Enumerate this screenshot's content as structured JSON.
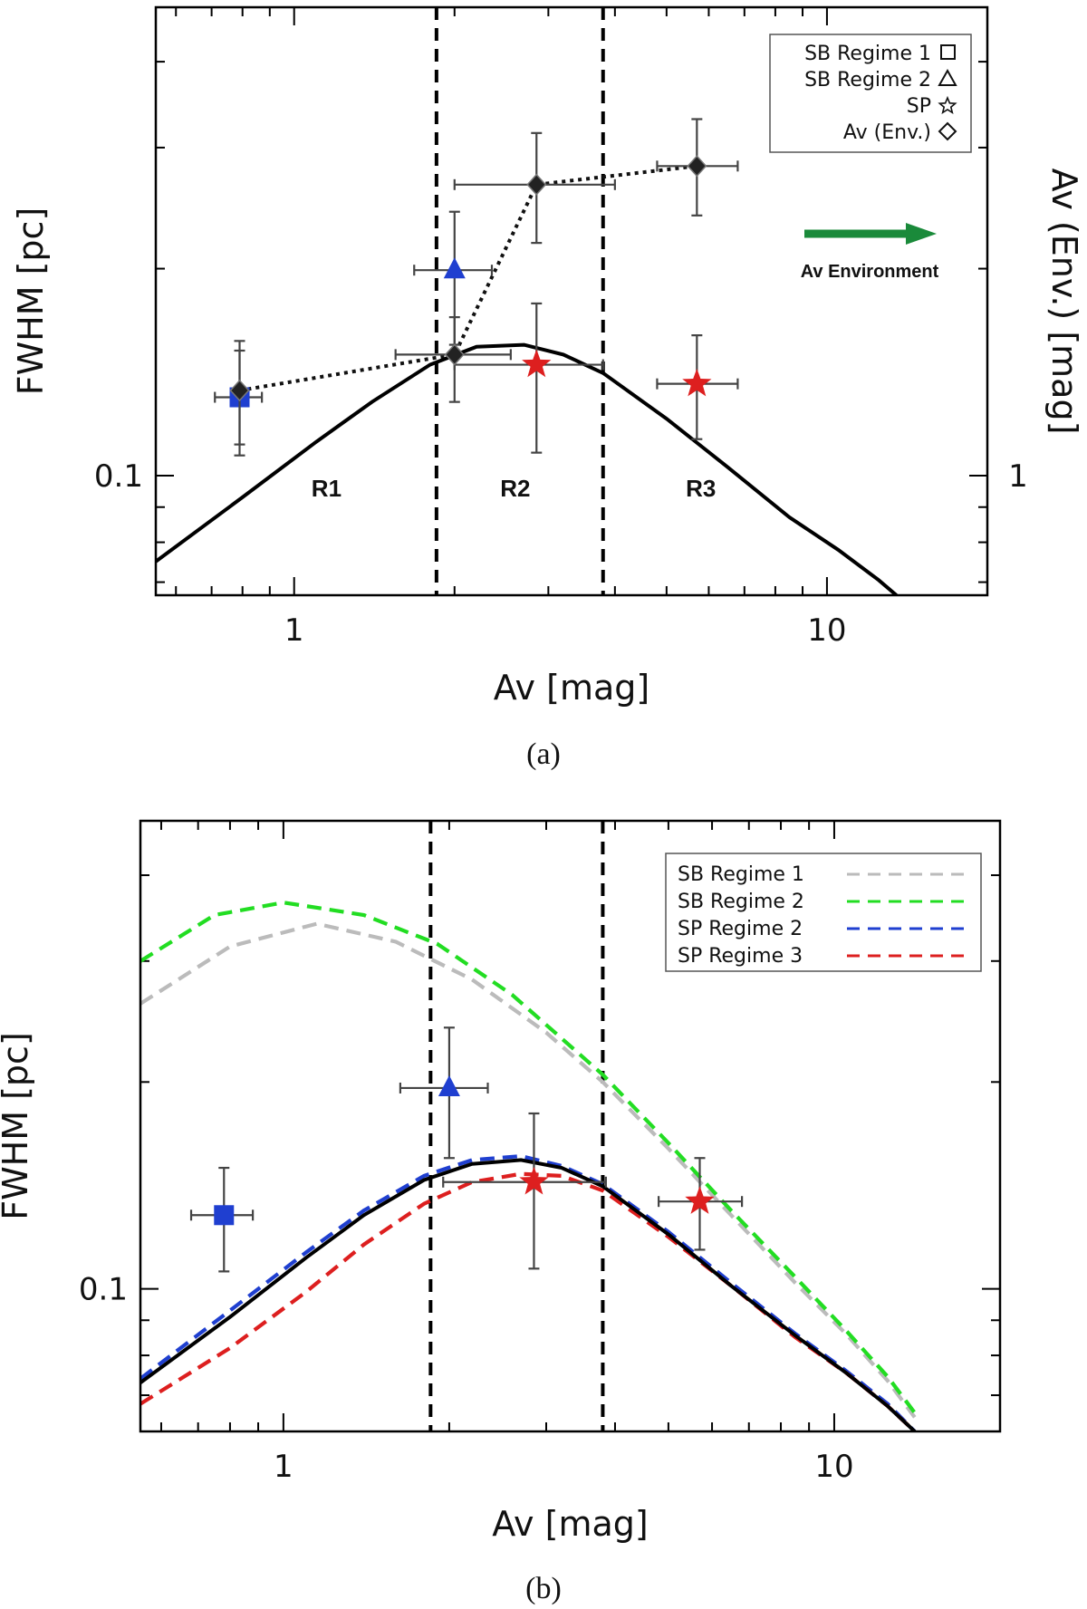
{
  "chart_data": [
    {
      "panel": "(a)",
      "type": "scatter",
      "caption": "(a)",
      "xlabel": "Av [mag]",
      "ylabel": "FWHM [pc]",
      "ylabel_right": "Av (Env.) [mag]",
      "xscale": "log",
      "yscale": "log",
      "xlim": [
        0.55,
        20
      ],
      "ylim": [
        0.067,
        0.48
      ],
      "x_tick_labels": [
        {
          "value": 1,
          "label": "1"
        },
        {
          "value": 10,
          "label": "10"
        }
      ],
      "y_tick_labels": [
        {
          "value": 0.1,
          "label": "0.1"
        }
      ],
      "y_right_tick_labels": [
        {
          "value": 0.1,
          "label": "1"
        }
      ],
      "vlines": [
        1.85,
        3.8
      ],
      "regions": [
        {
          "label": "R1",
          "x": 1.15
        },
        {
          "label": "R2",
          "x": 2.6
        },
        {
          "label": "R3",
          "x": 5.8
        }
      ],
      "legend": {
        "placement": "top-right",
        "entries": [
          {
            "label": "SB Regime 1",
            "symbol": "square"
          },
          {
            "label": "SB Regime 2",
            "symbol": "triangle"
          },
          {
            "label": "SP",
            "symbol": "star"
          },
          {
            "label": "Av (Env.)",
            "symbol": "diamond"
          }
        ]
      },
      "annotation": {
        "text": "Av Environment",
        "arrow_color": "#1a8a3a"
      },
      "series": [
        {
          "name": "SB Regime 1",
          "marker": "square",
          "color": "#1f3fd0",
          "points": [
            {
              "x": 0.79,
              "y": 0.13,
              "xerr": [
                0.71,
                0.87
              ],
              "yerr": [
                0.107,
                0.152
              ]
            }
          ]
        },
        {
          "name": "SB Regime 2",
          "marker": "triangle",
          "color": "#1f3fd0",
          "points": [
            {
              "x": 2.0,
              "y": 0.199,
              "xerr": [
                1.68,
                2.35
              ],
              "yerr": [
                0.155,
                0.242
              ]
            }
          ]
        },
        {
          "name": "SP",
          "marker": "star",
          "color": "#dd1f1f",
          "points": [
            {
              "x": 2.85,
              "y": 0.145,
              "xerr": [
                2.0,
                3.8
              ],
              "yerr": [
                0.108,
                0.178
              ]
            },
            {
              "x": 5.7,
              "y": 0.136,
              "xerr": [
                4.8,
                6.8
              ],
              "yerr": [
                0.113,
                0.16
              ]
            }
          ]
        },
        {
          "name": "Av (Env.)",
          "marker": "diamond",
          "color": "#222222",
          "line": "dotted",
          "points": [
            {
              "x": 0.79,
              "y": 0.133,
              "yerr": [
                0.111,
                0.157
              ]
            },
            {
              "x": 2.0,
              "y": 0.15,
              "xerr": [
                1.55,
                2.55
              ],
              "yerr": [
                0.128,
                0.17
              ]
            },
            {
              "x": 2.85,
              "y": 0.265,
              "xerr": [
                2.0,
                4.0
              ],
              "yerr": [
                0.218,
                0.315
              ]
            },
            {
              "x": 5.7,
              "y": 0.282,
              "xerr": [
                4.8,
                6.8
              ],
              "yerr": [
                0.239,
                0.33
              ]
            }
          ]
        },
        {
          "name": "",
          "marker": "none",
          "line": "solid",
          "color": "#000000",
          "curve": [
            [
              0.55,
              0.075
            ],
            [
              0.8,
              0.093
            ],
            [
              1.1,
              0.112
            ],
            [
              1.4,
              0.128
            ],
            [
              1.8,
              0.145
            ],
            [
              2.2,
              0.154
            ],
            [
              2.7,
              0.155
            ],
            [
              3.2,
              0.15
            ],
            [
              3.8,
              0.141
            ],
            [
              5.0,
              0.121
            ],
            [
              6.5,
              0.103
            ],
            [
              8.5,
              0.087
            ],
            [
              10.5,
              0.078
            ],
            [
              12.5,
              0.0705
            ],
            [
              13.5,
              0.067
            ]
          ]
        }
      ]
    },
    {
      "panel": "(b)",
      "type": "scatter",
      "caption": "(b)",
      "xlabel": "Av [mag]",
      "ylabel": "FWHM [pc]",
      "xscale": "log",
      "yscale": "log",
      "xlim": [
        0.55,
        20
      ],
      "ylim": [
        0.062,
        0.48
      ],
      "x_tick_labels": [
        {
          "value": 1,
          "label": "1"
        },
        {
          "value": 10,
          "label": "10"
        }
      ],
      "y_tick_labels": [
        {
          "value": 0.1,
          "label": "0.1"
        }
      ],
      "vlines": [
        1.85,
        3.8
      ],
      "legend": {
        "placement": "top-right",
        "entries": [
          {
            "label": "SB Regime 1",
            "color": "#bbbbbb"
          },
          {
            "label": "SB Regime 2",
            "color": "#22dd22"
          },
          {
            "label": "SP Regime 2",
            "color": "#1f3fd0"
          },
          {
            "label": "SP Regime 3",
            "color": "#dd1f1f"
          }
        ]
      },
      "series": [
        {
          "name": "SB Regime 1",
          "line": "dashed",
          "color": "#bbbbbb",
          "curve": [
            [
              0.55,
              0.26
            ],
            [
              0.8,
              0.315
            ],
            [
              1.15,
              0.34
            ],
            [
              1.6,
              0.32
            ],
            [
              2.2,
              0.282
            ],
            [
              3.0,
              0.236
            ],
            [
              3.8,
              0.2
            ],
            [
              5.0,
              0.16
            ],
            [
              6.5,
              0.128
            ],
            [
              8.5,
              0.102
            ],
            [
              10.5,
              0.086
            ],
            [
              12.5,
              0.0735
            ],
            [
              14.0,
              0.065
            ]
          ]
        },
        {
          "name": "SB Regime 2",
          "line": "dashed",
          "color": "#22dd22",
          "curve": [
            [
              0.55,
              0.3
            ],
            [
              0.75,
              0.35
            ],
            [
              1.0,
              0.365
            ],
            [
              1.4,
              0.35
            ],
            [
              1.9,
              0.318
            ],
            [
              2.6,
              0.268
            ],
            [
              3.8,
              0.205
            ],
            [
              5.0,
              0.163
            ],
            [
              6.5,
              0.13
            ],
            [
              8.5,
              0.104
            ],
            [
              10.5,
              0.087
            ],
            [
              12.5,
              0.0745
            ],
            [
              14.0,
              0.066
            ]
          ]
        },
        {
          "name": "SP Regime 2",
          "line": "dashed",
          "color": "#1f3fd0",
          "curve": [
            [
              0.55,
              0.074
            ],
            [
              0.8,
              0.093
            ],
            [
              1.1,
              0.113
            ],
            [
              1.4,
              0.13
            ],
            [
              1.8,
              0.146
            ],
            [
              2.2,
              0.154
            ],
            [
              2.7,
              0.156
            ],
            [
              3.2,
              0.151
            ],
            [
              3.8,
              0.142
            ],
            [
              5.0,
              0.121
            ],
            [
              6.5,
              0.102
            ],
            [
              8.5,
              0.086
            ],
            [
              10.5,
              0.076
            ],
            [
              12.5,
              0.068
            ],
            [
              14.0,
              0.062
            ]
          ]
        },
        {
          "name": "SP Regime 3",
          "line": "dashed",
          "color": "#dd1f1f",
          "curve": [
            [
              0.55,
              0.068
            ],
            [
              0.8,
              0.082
            ],
            [
              1.1,
              0.099
            ],
            [
              1.4,
              0.116
            ],
            [
              1.8,
              0.133
            ],
            [
              2.2,
              0.143
            ],
            [
              2.7,
              0.147
            ],
            [
              3.2,
              0.146
            ],
            [
              3.8,
              0.139
            ],
            [
              5.0,
              0.119
            ],
            [
              6.5,
              0.101
            ],
            [
              8.5,
              0.085
            ],
            [
              10.5,
              0.0755
            ],
            [
              12.5,
              0.0675
            ],
            [
              14.0,
              0.062
            ]
          ]
        },
        {
          "name": "",
          "line": "solid",
          "color": "#000000",
          "curve": [
            [
              0.55,
              0.073
            ],
            [
              0.8,
              0.091
            ],
            [
              1.1,
              0.111
            ],
            [
              1.4,
              0.128
            ],
            [
              1.8,
              0.144
            ],
            [
              2.2,
              0.152
            ],
            [
              2.7,
              0.154
            ],
            [
              3.2,
              0.15
            ],
            [
              3.8,
              0.141
            ],
            [
              5.0,
              0.12
            ],
            [
              6.5,
              0.101
            ],
            [
              8.5,
              0.0855
            ],
            [
              10.5,
              0.0755
            ],
            [
              12.5,
              0.0675
            ],
            [
              14.0,
              0.062
            ]
          ]
        },
        {
          "name": "",
          "marker": "square",
          "color": "#1f3fd0",
          "points": [
            {
              "x": 0.78,
              "y": 0.128,
              "xerr": [
                0.68,
                0.88
              ],
              "yerr": [
                0.106,
                0.15
              ]
            }
          ]
        },
        {
          "name": "",
          "marker": "triangle",
          "color": "#1f3fd0",
          "points": [
            {
              "x": 2.0,
              "y": 0.196,
              "xerr": [
                1.63,
                2.35
              ],
              "yerr": [
                0.155,
                0.24
              ]
            }
          ]
        },
        {
          "name": "",
          "marker": "star",
          "color": "#dd1f1f",
          "points": [
            {
              "x": 2.85,
              "y": 0.143,
              "xerr": [
                1.95,
                3.85
              ],
              "yerr": [
                0.107,
                0.18
              ]
            },
            {
              "x": 5.7,
              "y": 0.134,
              "xerr": [
                4.8,
                6.8
              ],
              "yerr": [
                0.114,
                0.155
              ]
            }
          ]
        }
      ]
    }
  ]
}
